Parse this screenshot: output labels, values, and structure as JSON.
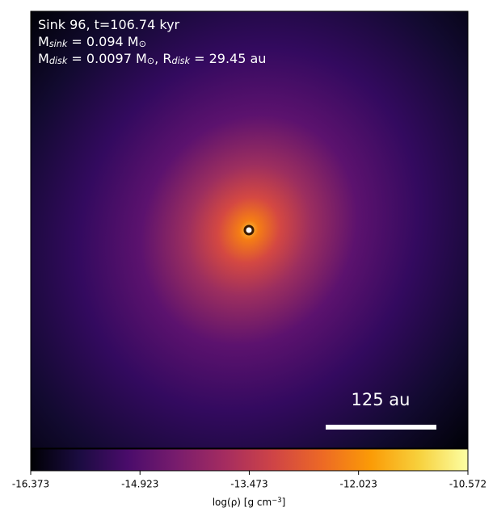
{
  "chart_data": {
    "type": "image",
    "annotations": [
      [
        {
          "text": "Sink 96, t=106.74 kyr"
        }
      ],
      [
        {
          "text": "M"
        },
        {
          "sub": "sink"
        },
        {
          "text": " = 0.094 M"
        },
        {
          "sub": "⊙"
        }
      ],
      [
        {
          "text": "M"
        },
        {
          "sub": "disk"
        },
        {
          "text": " = 0.0097 M"
        },
        {
          "sub": "⊙"
        },
        {
          "text": ", R"
        },
        {
          "sub": "disk"
        },
        {
          "text": " = 29.45 au"
        }
      ]
    ],
    "scale_bar": "125 au",
    "colormap": "inferno",
    "colorbar": {
      "label": [
        {
          "text": "log(ρ) [g cm"
        },
        {
          "sup": "−3"
        },
        {
          "text": "]"
        }
      ],
      "lim": [
        -16.373,
        -10.572
      ],
      "ticks": [
        -16.373,
        -14.923,
        -13.473,
        -12.023,
        -10.572
      ]
    }
  }
}
